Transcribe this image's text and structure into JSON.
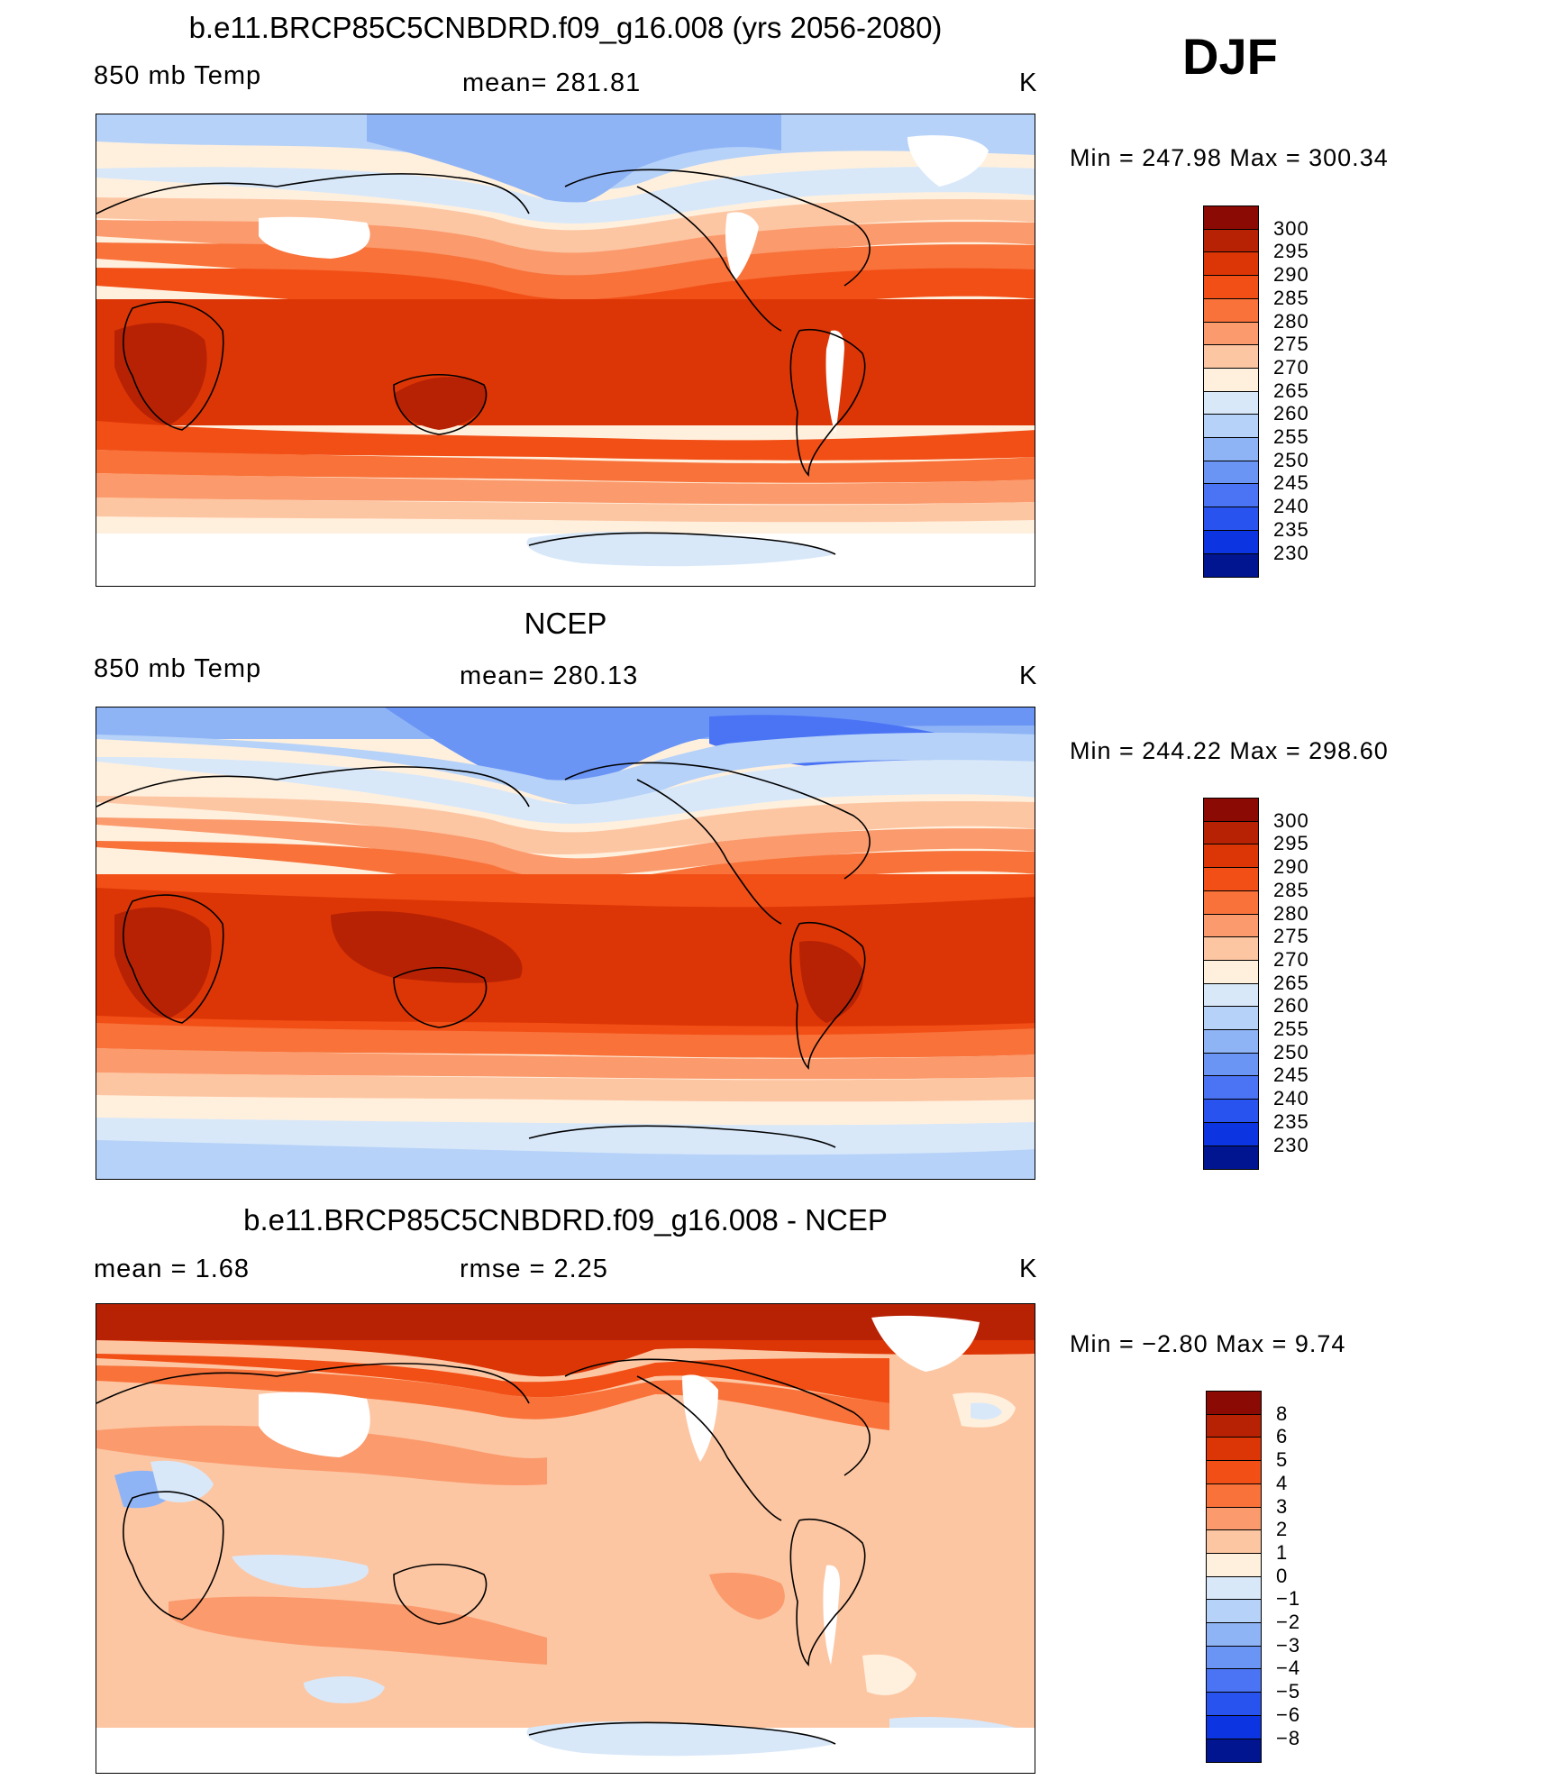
{
  "season": "DJF",
  "panels": [
    {
      "title": "b.e11.BRCP85C5CNBDRD.f09_g16.008 (yrs 2056-2080)",
      "left_label": "850 mb Temp",
      "center_label": "mean=  281.81",
      "units": "K",
      "minmax": "Min  =  247.98  Max  =  300.34",
      "legend": {
        "labels": [
          "300",
          "295",
          "290",
          "285",
          "280",
          "275",
          "270",
          "265",
          "260",
          "255",
          "250",
          "245",
          "240",
          "235",
          "230"
        ],
        "colors": [
          "#8b0a04",
          "#b82204",
          "#dd3606",
          "#f24f16",
          "#f8723a",
          "#fb9a6c",
          "#fdc6a3",
          "#fff0de",
          "#d8e8f9",
          "#b6d2f8",
          "#8fb4f6",
          "#6b95f5",
          "#4a74f4",
          "#2853ef",
          "#0c34e0",
          "#00158f"
        ]
      },
      "map_data": {
        "type": "filled-contour",
        "variable": "850 mb Temp",
        "field": "model",
        "min": 247.98,
        "max": 300.34
      }
    },
    {
      "title": "NCEP",
      "left_label": "850 mb Temp",
      "center_label": "mean=  280.13",
      "units": "K",
      "minmax": "Min  =  244.22  Max  =  298.60",
      "legend": {
        "labels": [
          "300",
          "295",
          "290",
          "285",
          "280",
          "275",
          "270",
          "265",
          "260",
          "255",
          "250",
          "245",
          "240",
          "235",
          "230"
        ],
        "colors": [
          "#8b0a04",
          "#b82204",
          "#dd3606",
          "#f24f16",
          "#f8723a",
          "#fb9a6c",
          "#fdc6a3",
          "#fff0de",
          "#d8e8f9",
          "#b6d2f8",
          "#8fb4f6",
          "#6b95f5",
          "#4a74f4",
          "#2853ef",
          "#0c34e0",
          "#00158f"
        ]
      },
      "map_data": {
        "type": "filled-contour",
        "variable": "850 mb Temp",
        "field": "observed",
        "min": 244.22,
        "max": 298.6
      }
    },
    {
      "title": "b.e11.BRCP85C5CNBDRD.f09_g16.008 - NCEP",
      "left_label": "mean =      1.68",
      "center_label": "rmse  =      2.25",
      "units": "K",
      "minmax": "Min  =    −2.80  Max  =      9.74",
      "legend": {
        "labels": [
          "8",
          "6",
          "5",
          "4",
          "3",
          "2",
          "1",
          "0",
          "−1",
          "−2",
          "−3",
          "−4",
          "−5",
          "−6",
          "−8"
        ],
        "colors": [
          "#8b0a04",
          "#b82204",
          "#dd3606",
          "#f24f16",
          "#f8723a",
          "#fb9a6c",
          "#fdc6a3",
          "#fff0de",
          "#d8e8f9",
          "#b6d2f8",
          "#8fb4f6",
          "#6b95f5",
          "#4a74f4",
          "#2853ef",
          "#0c34e0",
          "#00158f"
        ]
      },
      "map_data": {
        "type": "filled-contour",
        "variable": "850 mb Temp",
        "field": "difference",
        "min": -2.8,
        "max": 9.74
      }
    }
  ]
}
